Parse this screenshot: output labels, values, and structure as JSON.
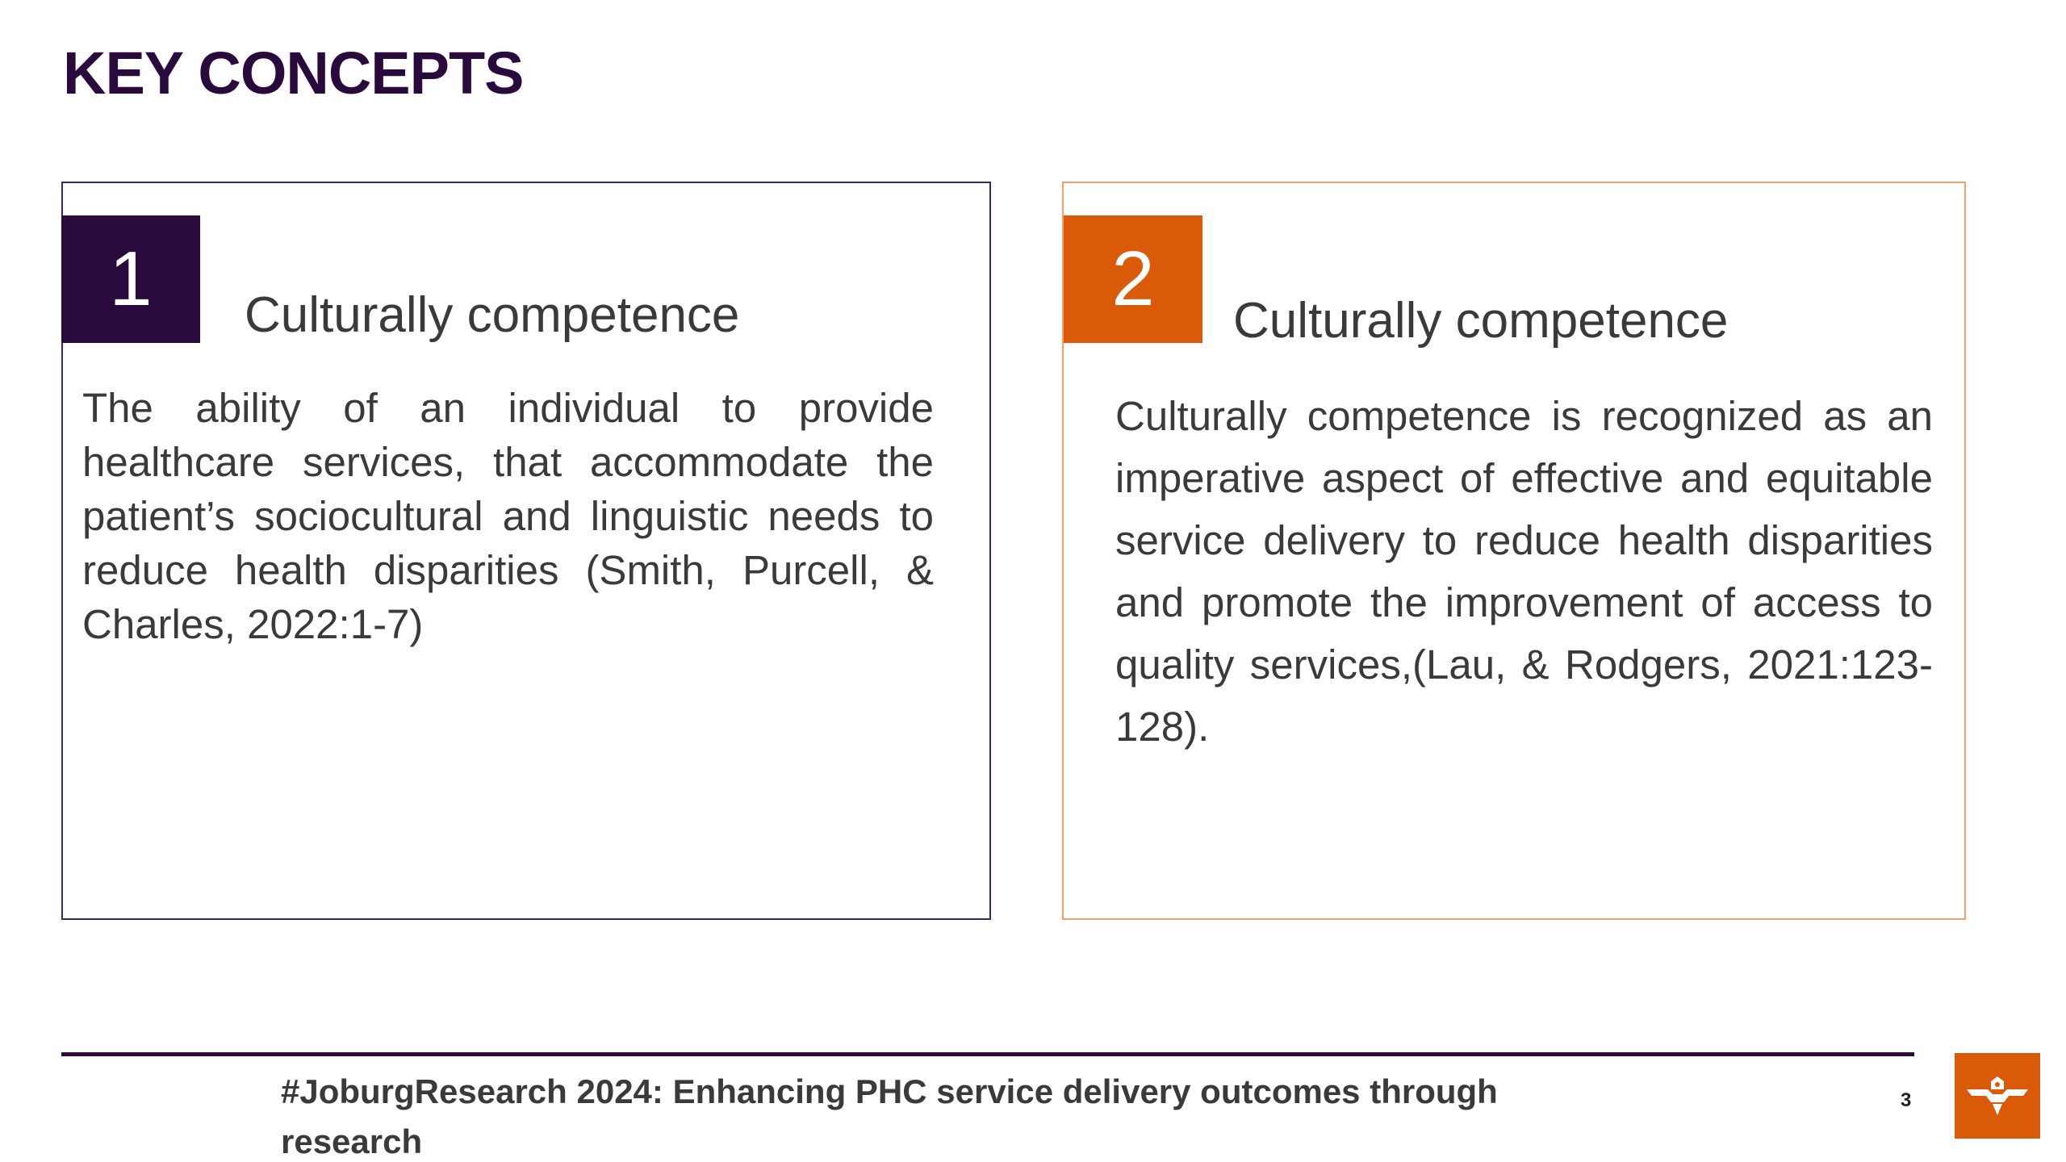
{
  "slide": {
    "title": "KEY CONCEPTS",
    "page_number": "3",
    "footer": "#JoburgResearch 2024: Enhancing PHC service delivery outcomes through research"
  },
  "cards": [
    {
      "number": "1",
      "heading": "Culturally competence",
      "body": "The ability of an individual to provide healthcare services, that accommodate the patient’s sociocultural and linguistic needs to reduce health disparities (Smith, Purcell, & Charles, 2022:1-7)",
      "accent_color": "#2a0a3c"
    },
    {
      "number": "2",
      "heading": "Culturally competence",
      "body": "Culturally competence is recognized as an imperative aspect of effective and equitable service delivery to reduce health disparities and promote the improvement of access to quality services,(Lau,   & Rodgers, 2021:123-128).",
      "accent_color": "#d95b0a"
    }
  ],
  "colors": {
    "primary_purple": "#2a0a3c",
    "accent_orange": "#d95b0a",
    "card_2_border": "#f0a06c",
    "body_text": "#3a3a3a"
  },
  "icons": {
    "logo": "city-of-johannesburg-logo-icon"
  }
}
